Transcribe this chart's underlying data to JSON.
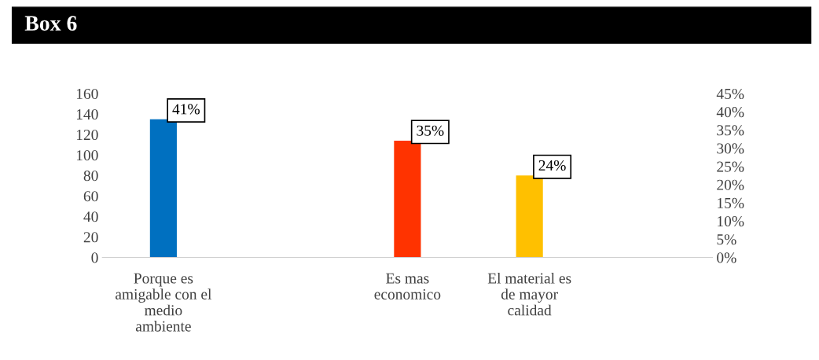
{
  "chart_data": {
    "type": "bar",
    "title": "Box 6",
    "categories": [
      "Porque es\namigable con el\nmedio\nambiente",
      null,
      "Es mas\neconomico",
      "El material es\nde mayor\ncalidad",
      null
    ],
    "values": [
      135,
      null,
      114,
      80,
      null
    ],
    "colors": [
      "#0070c0",
      null,
      "#ff3300",
      "#ffc000",
      null
    ],
    "annotations": [
      {
        "text": "41%",
        "x": "Porque es\namigable con el\nmedio\nambiente",
        "y": 135
      },
      {
        "text": "35%",
        "x": "Es mas\neconomico",
        "y": 114
      },
      {
        "text": "24%",
        "x": "El material es\nde mayor\ncalidad",
        "y": 80
      }
    ],
    "ylim": [
      0,
      160
    ],
    "yticks": [
      0,
      20,
      40,
      60,
      80,
      100,
      120,
      140,
      160
    ],
    "y2lim": [
      0,
      45
    ],
    "y2ticks": [
      {
        "value": 0,
        "label": "0%"
      },
      {
        "value": 5,
        "label": "5%"
      },
      {
        "value": 10,
        "label": "10%"
      },
      {
        "value": 15,
        "label": "15%"
      },
      {
        "value": 20,
        "label": "20%"
      },
      {
        "value": 25,
        "label": "25%"
      },
      {
        "value": 30,
        "label": "30%"
      },
      {
        "value": 35,
        "label": "35%"
      },
      {
        "value": 40,
        "label": "40%"
      },
      {
        "value": 45,
        "label": "45%"
      }
    ],
    "grid": false,
    "legend": false
  }
}
